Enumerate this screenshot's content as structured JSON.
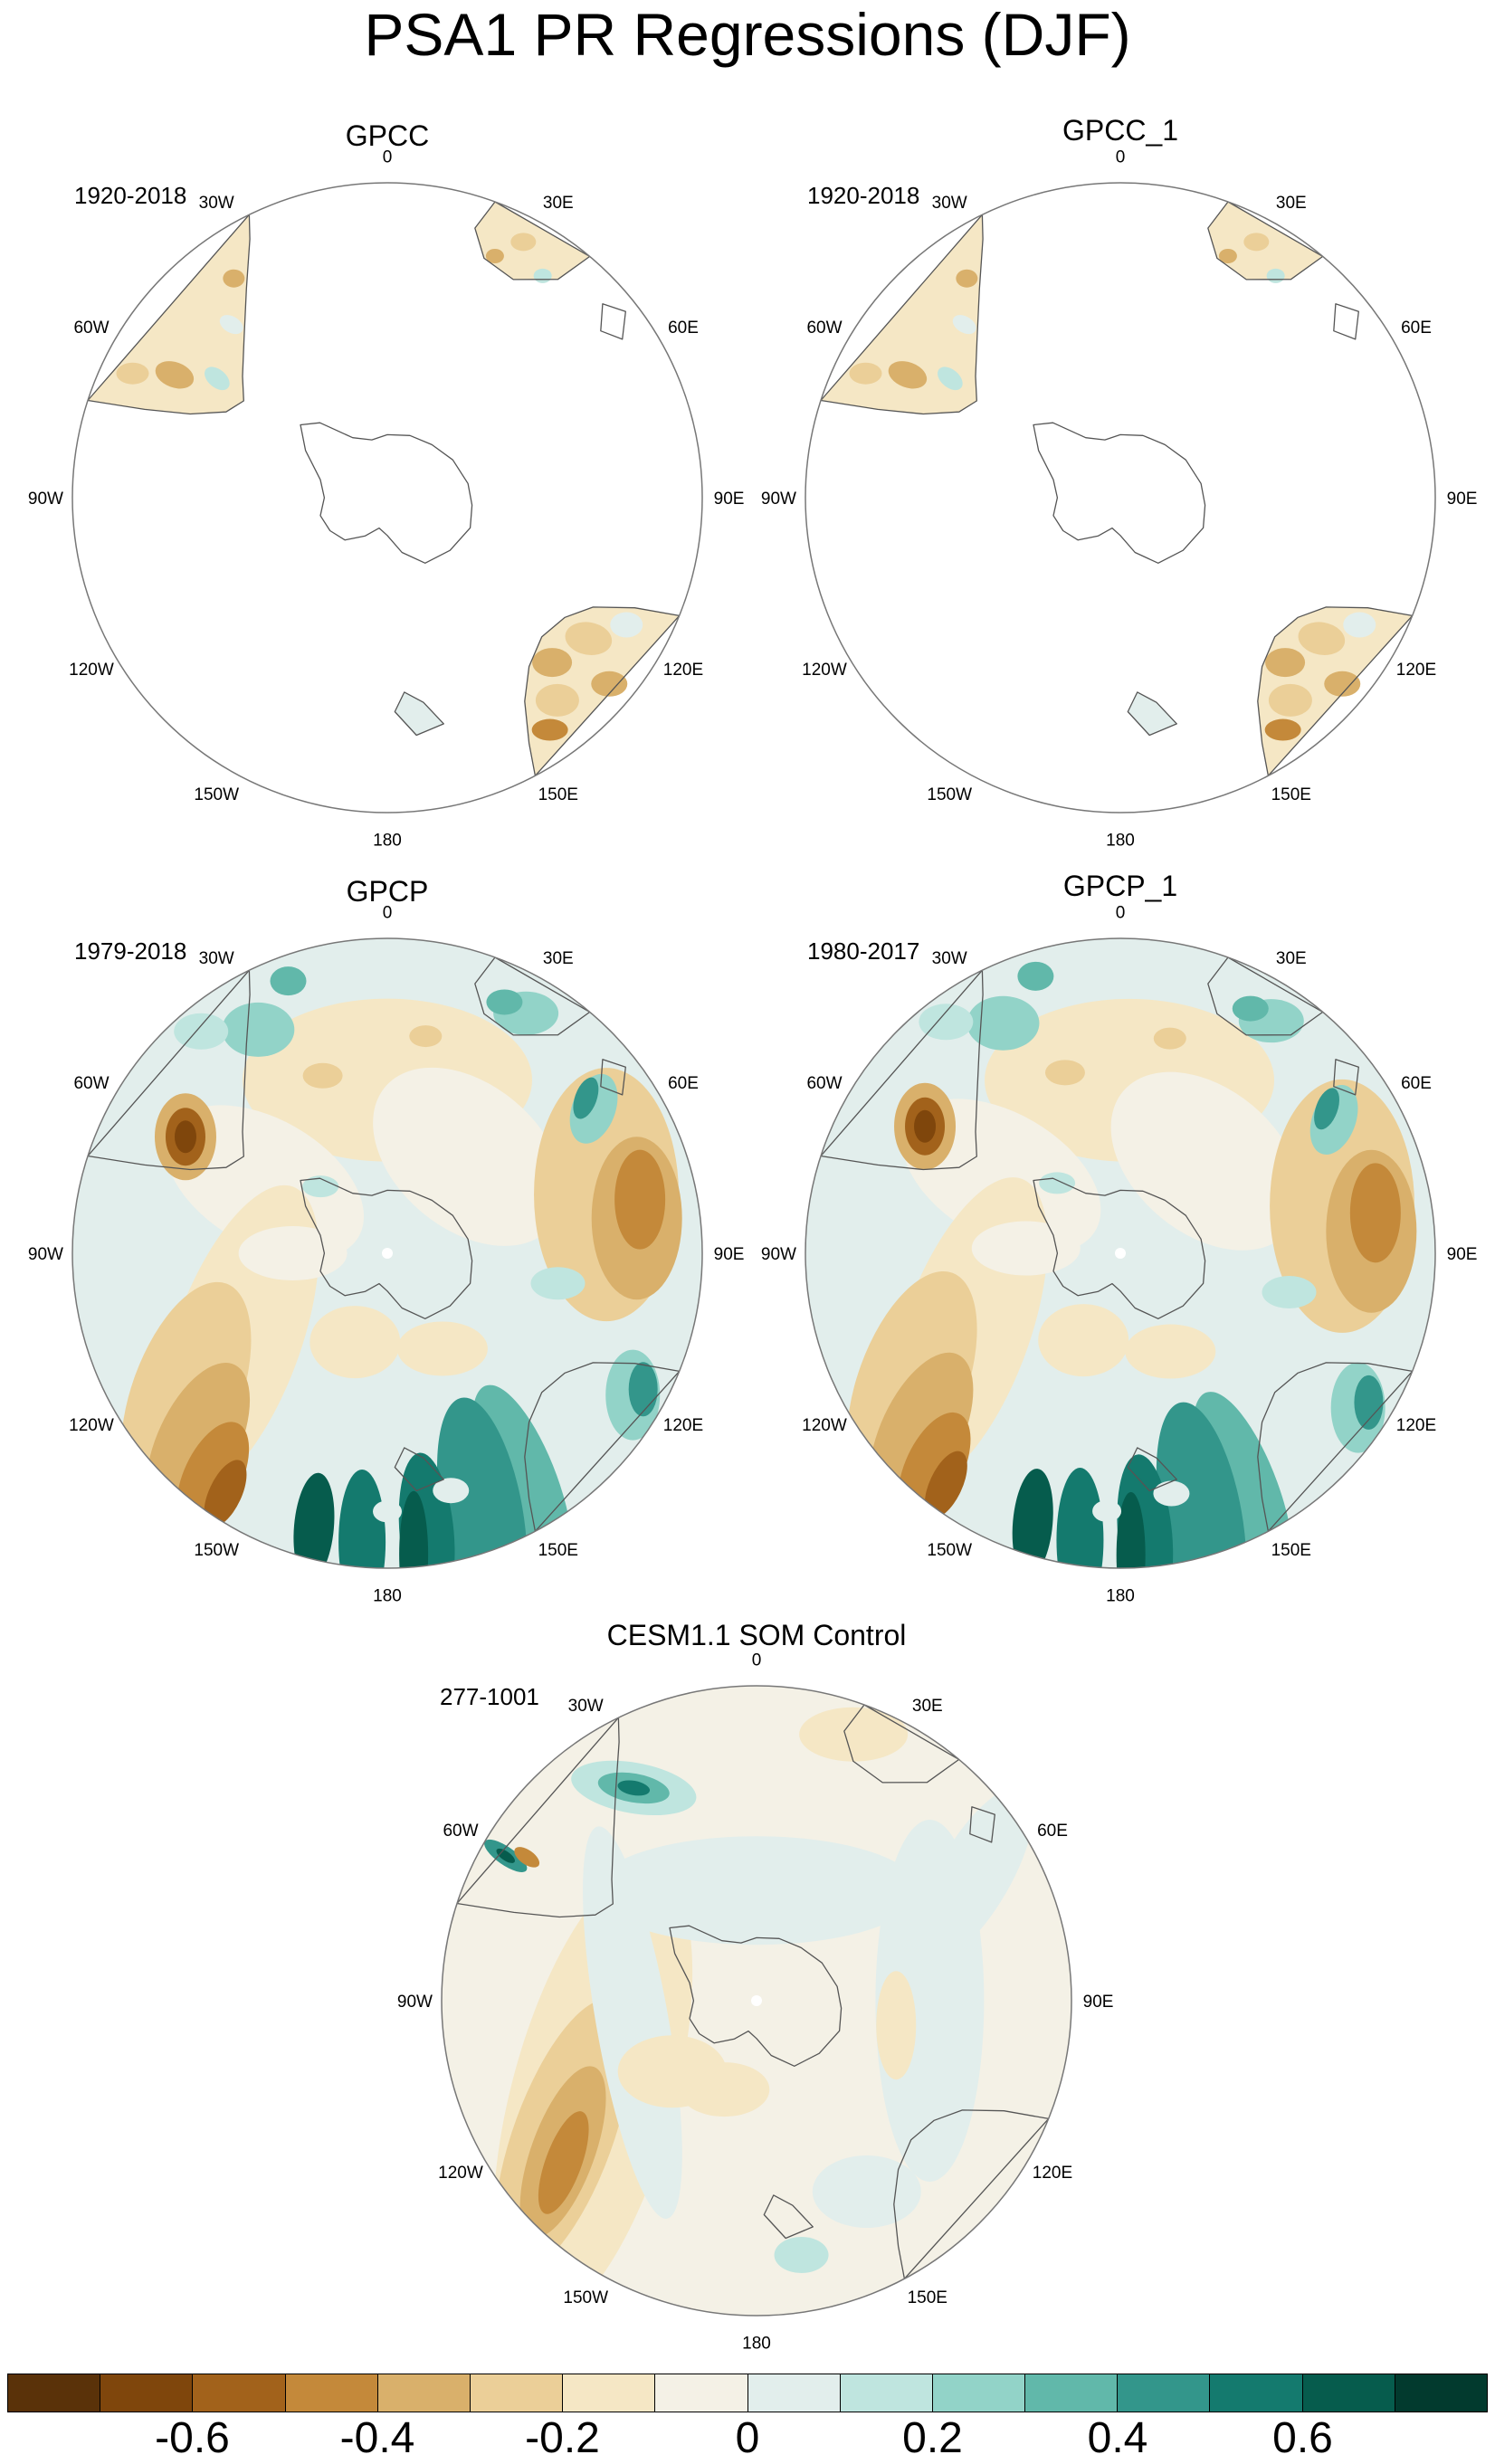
{
  "title": "PSA1 PR Regressions (DJF)",
  "panels": [
    {
      "id": "gpcc",
      "title": "GPCC",
      "range": "1920-2018",
      "kind": "land"
    },
    {
      "id": "gpcc1",
      "title": "GPCC_1",
      "range": "1920-2018",
      "kind": "land"
    },
    {
      "id": "gpcp",
      "title": "GPCP",
      "range": "1979-2018",
      "kind": "full"
    },
    {
      "id": "gpcp1",
      "title": "GPCP_1",
      "range": "1980-2017",
      "kind": "full"
    },
    {
      "id": "cesm",
      "title": "CESM1.1 SOM Control",
      "range": "277-1001",
      "kind": "model"
    }
  ],
  "longitude_labels": [
    "0",
    "30E",
    "60E",
    "90E",
    "120E",
    "150E",
    "180",
    "150W",
    "120W",
    "90W",
    "60W",
    "30W"
  ],
  "colorbar": {
    "levels": [
      -0.7,
      -0.6,
      -0.5,
      -0.4,
      -0.3,
      -0.2,
      -0.1,
      0,
      0.1,
      0.2,
      0.3,
      0.4,
      0.5,
      0.6,
      0.7
    ],
    "colors": [
      "#5a3209",
      "#7f460c",
      "#a2621b",
      "#c4893a",
      "#d9b06b",
      "#ebcf98",
      "#f5e7c5",
      "#f4f1e6",
      "#e2eeec",
      "#bfe5df",
      "#92d3c8",
      "#61b8aa",
      "#33968b",
      "#147a6e",
      "#065c4d",
      "#023a2e"
    ],
    "labels": [
      "-0.6",
      "-0.4",
      "-0.2",
      "0",
      "0.2",
      "0.4",
      "0.6"
    ],
    "label_values": [
      -0.6,
      -0.4,
      -0.2,
      0,
      0.2,
      0.4,
      0.6
    ]
  }
}
